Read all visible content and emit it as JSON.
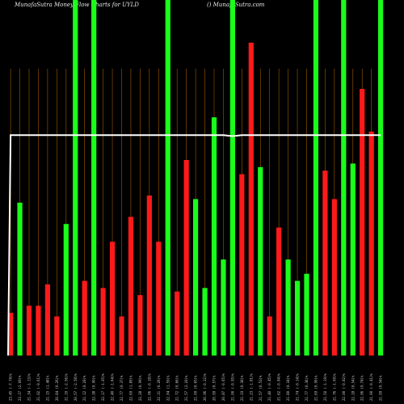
{
  "header": {
    "title": "MunafaSutra  Money Flow Charts for UYLD",
    "source": "() MunafaSutra.com"
  },
  "chart_data": {
    "type": "bar",
    "title": "MunafaSutra  Money Flow Charts for UYLD",
    "ylim": [
      0,
      100
    ],
    "grid": "vertical",
    "series": [
      {
        "type": "bar",
        "values": [
          12,
          43,
          14,
          14,
          20,
          11,
          37,
          100,
          21,
          100,
          19,
          32,
          11,
          39,
          17,
          45,
          32,
          100,
          18,
          55,
          44,
          19,
          67,
          27,
          100,
          51,
          88,
          53,
          11,
          36,
          27,
          21,
          23,
          100,
          52,
          44,
          100,
          54,
          75,
          63,
          100
        ],
        "colors": [
          "#ff1a1a",
          "#1aff1a",
          "#ff1a1a",
          "#ff1a1a",
          "#ff1a1a",
          "#ff1a1a",
          "#1aff1a",
          "#1aff1a",
          "#ff1a1a",
          "#1aff1a",
          "#ff1a1a",
          "#ff1a1a",
          "#ff1a1a",
          "#ff1a1a",
          "#ff1a1a",
          "#ff1a1a",
          "#ff1a1a",
          "#1aff1a",
          "#ff1a1a",
          "#ff1a1a",
          "#1aff1a",
          "#1aff1a",
          "#1aff1a",
          "#1aff1a",
          "#1aff1a",
          "#ff1a1a",
          "#ff1a1a",
          "#1aff1a",
          "#ff1a1a",
          "#ff1a1a",
          "#1aff1a",
          "#1aff1a",
          "#1aff1a",
          "#1aff1a",
          "#ff1a1a",
          "#ff1a1a",
          "#1aff1a",
          "#1aff1a",
          "#ff1a1a",
          "#ff1a1a",
          "#1aff1a"
        ]
      },
      {
        "type": "line",
        "color": "#ffffff",
        "values": [
          62,
          62,
          62,
          62,
          62,
          62,
          62,
          62,
          62,
          62,
          62,
          62,
          62,
          62,
          62,
          62,
          62,
          62,
          62,
          62,
          62,
          62,
          62,
          62,
          61.7,
          62,
          62,
          62,
          62,
          62,
          62,
          62,
          62,
          62,
          62,
          62,
          62,
          62,
          62,
          62,
          62
        ]
      }
    ],
    "categories": [
      "23.45 (-7.74)%",
      "23.17 (2.09)%",
      "21.34 (-1.13)%",
      "21.02 (-0.61)%",
      "21.15 (1.48)%",
      "20.84 (0.26)%",
      "21.10 (-2.56)%",
      "20.57 (-2.58)%",
      "21.12 (0.28)%",
      "22.38 (0.90)%",
      "22.17 (-1.05)%",
      "22.40 (-1.64)%",
      "22.77 (0.37)%",
      "22.69 (1.80)%",
      "22.28 (0.99)%",
      "22.06 (-0.18)%",
      "22.11 (0.26)%",
      "22.04 (1.59)%",
      "21.72 (0.66)%",
      "21.57 (2.20)%",
      "21.09 (0.65)%",
      "20.96 (-0.22)%",
      "20.99 (0.57)%",
      "20.87 (-0.65)%",
      "21.00 (-0.95)%",
      "21.19 (0.38)%",
      "21.23 (-1.81)%",
      "21.57 (0.53)%",
      "21.40 (-0.45)%",
      "21.62 (-0.84)%",
      "21.80 (0.34)%",
      "21.74 (-0.14)%",
      "21.77 (0.36)%",
      "21.69 (0.90)%",
      "21.50 (-1.19)%",
      "21.76 (-1.09)%",
      "22.00 (-0.82)%",
      "22.18 (0.54)%",
      "22.06 (0.74)%",
      "21.90 (-0.41)%",
      "21.99 (0.54)%"
    ]
  }
}
